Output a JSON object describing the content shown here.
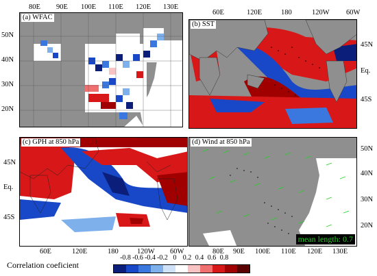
{
  "panels": {
    "a": {
      "title": "(a) WFAC"
    },
    "b": {
      "title": "(b) SST"
    },
    "c": {
      "title": "(c) GPH at 850 hPa"
    },
    "d": {
      "title": "(d) Wind at 850 hPa",
      "mean_label": "mean length: 0.7"
    }
  },
  "axes": {
    "asia_top_lon": [
      "80E",
      "90E",
      "100E",
      "110E",
      "120E",
      "130E"
    ],
    "asia_bottom_lon": [
      "80E",
      "90E",
      "100E",
      "110E",
      "120E",
      "130E"
    ],
    "asia_lat": [
      "50N",
      "40N",
      "30N",
      "20N"
    ],
    "global_top_lon": [
      "60E",
      "120E",
      "180",
      "120W",
      "60W"
    ],
    "global_bottom_lon": [
      "60E",
      "120E",
      "180",
      "120W",
      "60W"
    ],
    "global_lat": [
      "45N",
      "Eq.",
      "45S"
    ]
  },
  "colorbar": {
    "title": "Correlation coeficient",
    "ticks": [
      "-0.8",
      "-0.6",
      "-0.4",
      "-0.2",
      "0",
      "0.2",
      "0.4",
      "0.6",
      "0.8"
    ],
    "colors": [
      "#0b1f7a",
      "#1848c8",
      "#3a78e0",
      "#7eb0ec",
      "#cfe2f7",
      "#ffffff",
      "#f7c3c3",
      "#f07070",
      "#d81818",
      "#a00000",
      "#5a0000"
    ]
  },
  "colors": {
    "land": "#8f8f8f",
    "red": "#d81818",
    "blue": "#1848c8",
    "wind": "#22d322"
  }
}
